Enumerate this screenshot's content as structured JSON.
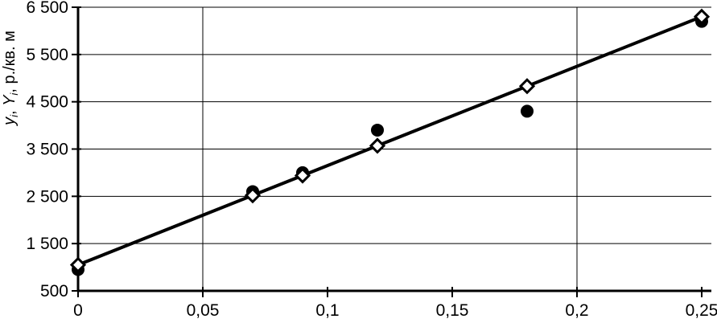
{
  "chart_data": {
    "type": "scatter",
    "title": "",
    "y_axis": {
      "title": "yi, Yi, р./кв. м",
      "title_parts": [
        {
          "t": "y",
          "style": "it"
        },
        {
          "t": "i",
          "style": "sub"
        },
        {
          "t": ", ",
          "style": ""
        },
        {
          "t": "Y",
          "style": "it"
        },
        {
          "t": "i",
          "style": "sub"
        },
        {
          "t": ", р./кв. м",
          "style": ""
        }
      ],
      "min": 500,
      "max": 6500,
      "tick_values": [
        6500,
        5500,
        4500,
        3500,
        2500,
        1500,
        500
      ],
      "tick_labels": [
        "6 500",
        "5 500",
        "4 500",
        "3 500",
        "2 500",
        "1 500",
        "500"
      ]
    },
    "x_axis": {
      "title": "",
      "min": 0,
      "max": 0.25,
      "tick_values": [
        0,
        0.05,
        0.1,
        0.15,
        0.2,
        0.25
      ],
      "tick_labels": [
        "0",
        "0,05",
        "0,1",
        "0,15",
        "0,2",
        "0,25"
      ],
      "gridline_values": [
        0.05,
        0.2
      ]
    },
    "series": [
      {
        "name": "observed points (filled circles)",
        "marker": "filled-circle",
        "color": "#000000",
        "points": [
          [
            0,
            950
          ],
          [
            0.07,
            2600
          ],
          [
            0.09,
            3000
          ],
          [
            0.12,
            3900
          ],
          [
            0.18,
            4300
          ],
          [
            0.25,
            6200
          ]
        ]
      },
      {
        "name": "fitted points (open diamonds)",
        "marker": "open-diamond",
        "color": "#000000",
        "points": [
          [
            0,
            1050
          ],
          [
            0.07,
            2520
          ],
          [
            0.09,
            2940
          ],
          [
            0.12,
            3570
          ],
          [
            0.18,
            4830
          ],
          [
            0.25,
            6300
          ]
        ]
      }
    ],
    "trend_line": {
      "x": [
        0,
        0.25
      ],
      "y": [
        1050,
        6300
      ],
      "color": "#000000",
      "width": 4
    },
    "layout": {
      "grid": "horizontal lines every 1000; vertical lines at 0,05 and 0,2",
      "legend": "none"
    },
    "colors": {
      "foreground": "#000000",
      "background": "#ffffff"
    }
  }
}
